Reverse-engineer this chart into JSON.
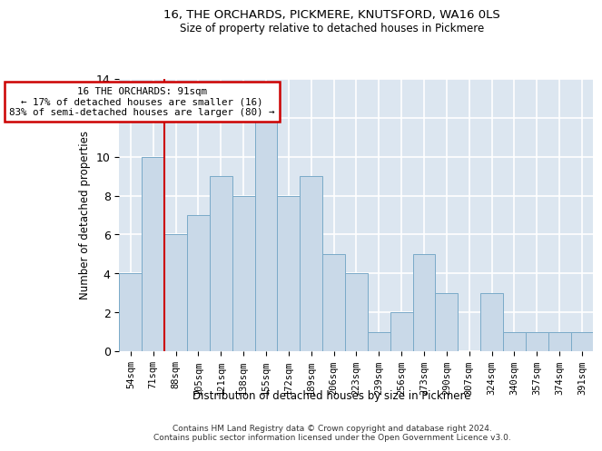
{
  "title": "16, THE ORCHARDS, PICKMERE, KNUTSFORD, WA16 0LS",
  "subtitle": "Size of property relative to detached houses in Pickmere",
  "xlabel_bottom": "Distribution of detached houses by size in Pickmere",
  "ylabel": "Number of detached properties",
  "categories": [
    "54sqm",
    "71sqm",
    "88sqm",
    "105sqm",
    "121sqm",
    "138sqm",
    "155sqm",
    "172sqm",
    "189sqm",
    "206sqm",
    "223sqm",
    "239sqm",
    "256sqm",
    "273sqm",
    "290sqm",
    "307sqm",
    "324sqm",
    "340sqm",
    "357sqm",
    "374sqm",
    "391sqm"
  ],
  "values": [
    4,
    10,
    6,
    7,
    9,
    8,
    12,
    8,
    9,
    5,
    4,
    1,
    2,
    5,
    3,
    0,
    3,
    1,
    1,
    1,
    1
  ],
  "bar_color": "#c9d9e8",
  "bar_edge_color": "#7aaac8",
  "bg_color": "#dce6f0",
  "grid_color": "#ffffff",
  "annotation_box_text": "16 THE ORCHARDS: 91sqm\n← 17% of detached houses are smaller (16)\n83% of semi-detached houses are larger (80) →",
  "vline_x_index": 1.5,
  "vline_color": "#cc0000",
  "annotation_box_color": "#cc0000",
  "footer": "Contains HM Land Registry data © Crown copyright and database right 2024.\nContains public sector information licensed under the Open Government Licence v3.0.",
  "ylim": [
    0,
    14
  ],
  "yticks": [
    0,
    2,
    4,
    6,
    8,
    10,
    12,
    14
  ]
}
